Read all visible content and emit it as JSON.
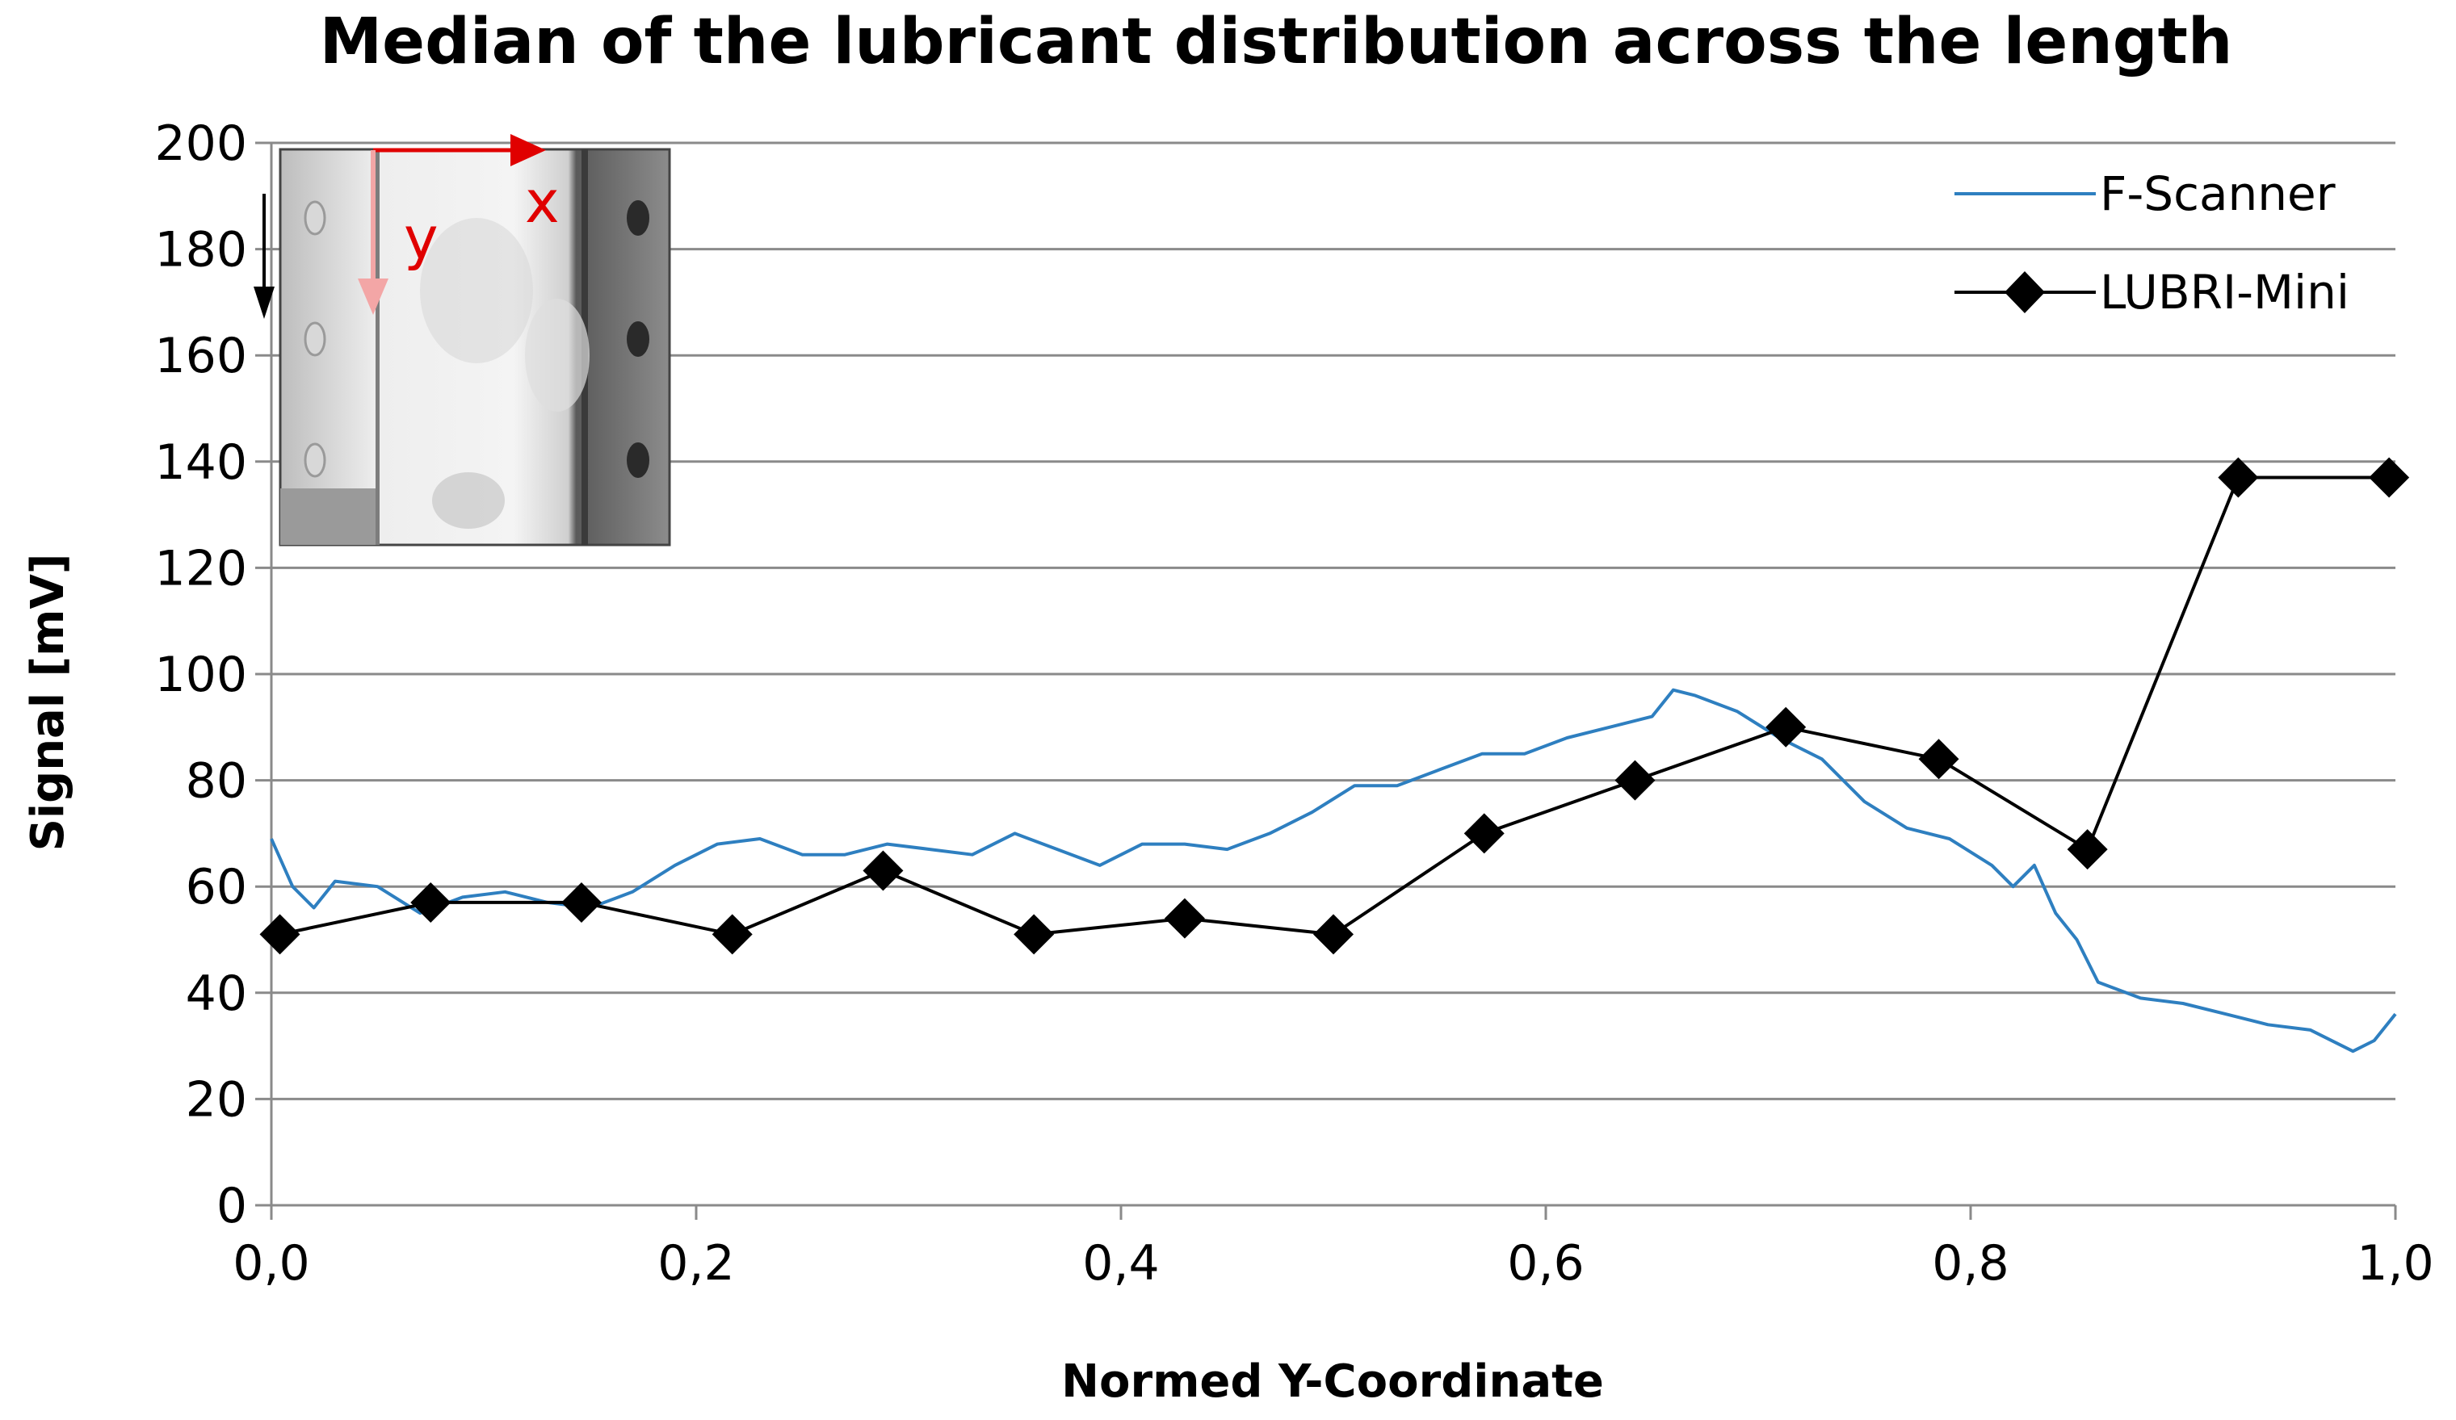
{
  "chart_data": {
    "type": "line",
    "title": "Median of the lubricant distribution across the length",
    "xlabel": "Normed Y-Coordinate",
    "ylabel": "Signal  [mV]",
    "xlim": [
      0,
      1
    ],
    "ylim": [
      0,
      200
    ],
    "x_ticks": [
      "0,0",
      "0,2",
      "0,4",
      "0,6",
      "0,8",
      "1,0"
    ],
    "y_ticks": [
      "0",
      "20",
      "40",
      "60",
      "80",
      "100",
      "120",
      "140",
      "160",
      "180",
      "200"
    ],
    "grid": "horizontal",
    "legend_position": "top-right",
    "series": [
      {
        "name": "F-Scanner",
        "color": "#2e7fc0",
        "marker": "none",
        "x": [
          0.0,
          0.01,
          0.02,
          0.03,
          0.05,
          0.07,
          0.09,
          0.11,
          0.13,
          0.15,
          0.17,
          0.19,
          0.21,
          0.23,
          0.25,
          0.27,
          0.29,
          0.31,
          0.33,
          0.35,
          0.37,
          0.39,
          0.41,
          0.43,
          0.45,
          0.47,
          0.49,
          0.51,
          0.53,
          0.55,
          0.57,
          0.59,
          0.61,
          0.63,
          0.65,
          0.66,
          0.67,
          0.69,
          0.71,
          0.73,
          0.75,
          0.77,
          0.79,
          0.81,
          0.82,
          0.83,
          0.84,
          0.85,
          0.86,
          0.88,
          0.9,
          0.92,
          0.94,
          0.96,
          0.98,
          0.99,
          1.0
        ],
        "y": [
          69,
          60,
          56,
          61,
          60,
          55,
          58,
          59,
          57,
          56,
          59,
          64,
          68,
          69,
          66,
          66,
          68,
          67,
          66,
          70,
          67,
          64,
          68,
          68,
          67,
          70,
          74,
          79,
          79,
          82,
          85,
          85,
          88,
          90,
          92,
          97,
          96,
          93,
          88,
          84,
          76,
          71,
          69,
          64,
          60,
          64,
          55,
          50,
          42,
          39,
          38,
          36,
          34,
          33,
          29,
          31,
          36
        ]
      },
      {
        "name": "LUBRI-Mini",
        "color": "#000000",
        "marker": "diamond",
        "x": [
          0.004,
          0.075,
          0.146,
          0.217,
          0.288,
          0.359,
          0.43,
          0.5,
          0.571,
          0.642,
          0.713,
          0.785,
          0.855,
          0.926,
          0.997
        ],
        "y": [
          51,
          57,
          57,
          51,
          63,
          51,
          54,
          51,
          70,
          80,
          90,
          84,
          67,
          137,
          137
        ]
      }
    ]
  },
  "inset": {
    "x_label": "x",
    "y_label": "y",
    "arrow_color": "#e00000"
  }
}
